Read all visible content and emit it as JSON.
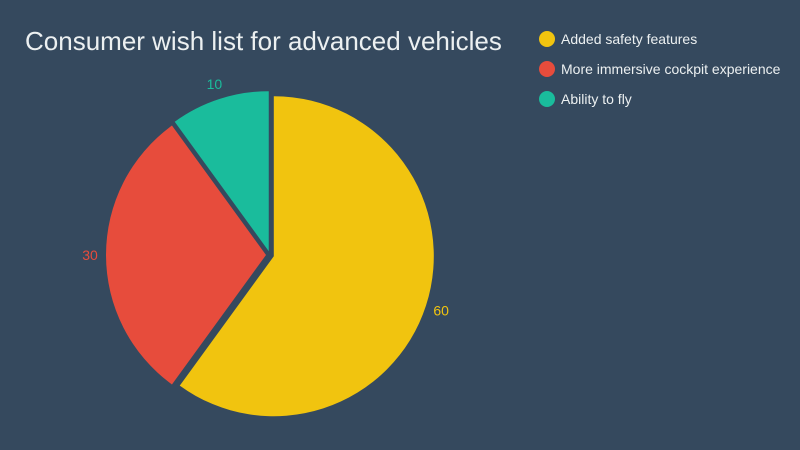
{
  "chart_data": {
    "type": "pie",
    "title": "Consumer wish list for advanced vehicles",
    "categories": [
      "Added safety features",
      "More immersive cockpit experience",
      "Ability to fly"
    ],
    "values": [
      60,
      30,
      10
    ],
    "data_labels": [
      "60",
      "30",
      "10"
    ],
    "colors": [
      "#f1c40f",
      "#e74c3c",
      "#1abc9c"
    ],
    "legend_position": "top-right"
  }
}
